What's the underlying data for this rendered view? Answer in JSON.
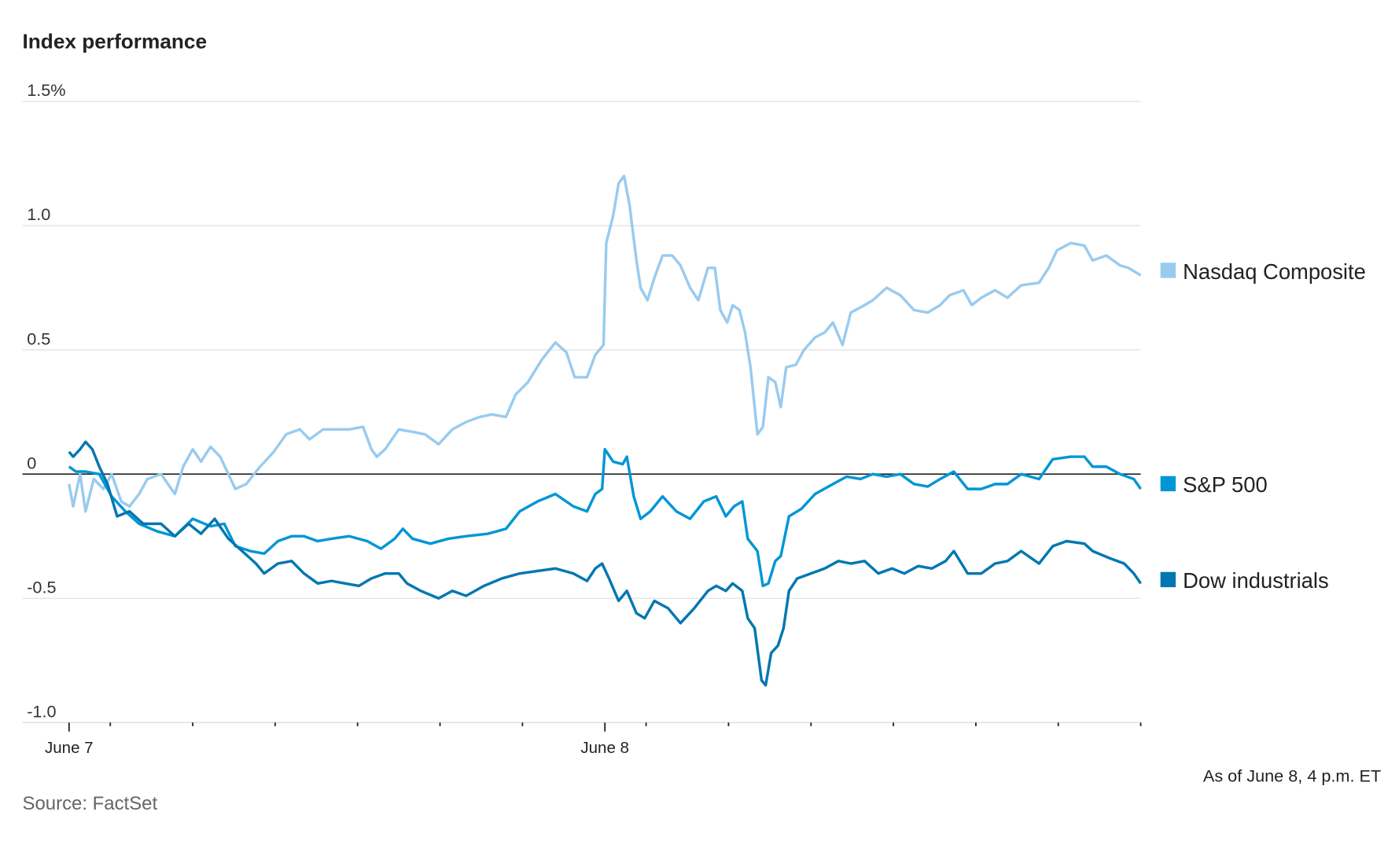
{
  "chart_data": {
    "type": "line",
    "title": "Index performance",
    "xlabel": "",
    "ylabel": "",
    "x_units": "trading minutes since June 7 open (390 per session)",
    "xlim": [
      0,
      780
    ],
    "ylim": [
      -1.0,
      1.5
    ],
    "y_ticks": [
      {
        "v": 1.5,
        "label": "1.5%"
      },
      {
        "v": 1.0,
        "label": "1.0"
      },
      {
        "v": 0.5,
        "label": "0.5"
      },
      {
        "v": 0,
        "label": "0"
      },
      {
        "v": -0.5,
        "label": "-0.5"
      },
      {
        "v": -1.0,
        "label": "-1.0"
      }
    ],
    "x_tick_labels": [
      {
        "t": 0,
        "label": "June 7"
      },
      {
        "t": 390,
        "label": "June 8"
      }
    ],
    "x_minor_ticks": [
      0,
      30,
      90,
      150,
      210,
      270,
      330,
      390,
      420,
      480,
      540,
      600,
      660,
      720,
      780
    ],
    "grid": true,
    "legend_placement": "right",
    "note": "As of June 8, 4 p.m. ET",
    "source": "Source: FactSet",
    "series": [
      {
        "name": "Nasdaq Composite",
        "color": "#99cbef",
        "points": [
          [
            0,
            -0.04
          ],
          [
            3,
            -0.13
          ],
          [
            8,
            0.0
          ],
          [
            12,
            -0.15
          ],
          [
            18,
            -0.02
          ],
          [
            25,
            -0.06
          ],
          [
            31,
            0.0
          ],
          [
            38,
            -0.11
          ],
          [
            44,
            -0.13
          ],
          [
            51,
            -0.08
          ],
          [
            57,
            -0.02
          ],
          [
            67,
            0.0
          ],
          [
            77,
            -0.08
          ],
          [
            83,
            0.03
          ],
          [
            90,
            0.1
          ],
          [
            96,
            0.05
          ],
          [
            103,
            0.11
          ],
          [
            110,
            0.07
          ],
          [
            116,
            0.0
          ],
          [
            121,
            -0.06
          ],
          [
            129,
            -0.04
          ],
          [
            139,
            0.03
          ],
          [
            149,
            0.09
          ],
          [
            158,
            0.16
          ],
          [
            168,
            0.18
          ],
          [
            175,
            0.14
          ],
          [
            185,
            0.18
          ],
          [
            194,
            0.18
          ],
          [
            204,
            0.18
          ],
          [
            214,
            0.19
          ],
          [
            220,
            0.1
          ],
          [
            224,
            0.07
          ],
          [
            230,
            0.1
          ],
          [
            240,
            0.18
          ],
          [
            250,
            0.17
          ],
          [
            259,
            0.16
          ],
          [
            269,
            0.12
          ],
          [
            279,
            0.18
          ],
          [
            289,
            0.21
          ],
          [
            299,
            0.23
          ],
          [
            308,
            0.24
          ],
          [
            318,
            0.23
          ],
          [
            325,
            0.32
          ],
          [
            334,
            0.37
          ],
          [
            344,
            0.46
          ],
          [
            354,
            0.53
          ],
          [
            362,
            0.49
          ],
          [
            368,
            0.39
          ],
          [
            377,
            0.39
          ],
          [
            383,
            0.48
          ],
          [
            389,
            0.52
          ],
          [
            391,
            0.93
          ],
          [
            396,
            1.04
          ],
          [
            400,
            1.17
          ],
          [
            404,
            1.2
          ],
          [
            408,
            1.08
          ],
          [
            413,
            0.86
          ],
          [
            416,
            0.75
          ],
          [
            421,
            0.7
          ],
          [
            426,
            0.79
          ],
          [
            432,
            0.88
          ],
          [
            439,
            0.88
          ],
          [
            445,
            0.84
          ],
          [
            452,
            0.75
          ],
          [
            458,
            0.7
          ],
          [
            465,
            0.83
          ],
          [
            470,
            0.83
          ],
          [
            474,
            0.66
          ],
          [
            479,
            0.61
          ],
          [
            483,
            0.68
          ],
          [
            488,
            0.66
          ],
          [
            492,
            0.57
          ],
          [
            496,
            0.43
          ],
          [
            501,
            0.16
          ],
          [
            505,
            0.19
          ],
          [
            509,
            0.39
          ],
          [
            514,
            0.37
          ],
          [
            518,
            0.27
          ],
          [
            522,
            0.43
          ],
          [
            529,
            0.44
          ],
          [
            535,
            0.5
          ],
          [
            543,
            0.55
          ],
          [
            550,
            0.57
          ],
          [
            556,
            0.61
          ],
          [
            563,
            0.52
          ],
          [
            569,
            0.65
          ],
          [
            579,
            0.68
          ],
          [
            585,
            0.7
          ],
          [
            595,
            0.75
          ],
          [
            605,
            0.72
          ],
          [
            615,
            0.66
          ],
          [
            625,
            0.65
          ],
          [
            634,
            0.68
          ],
          [
            641,
            0.72
          ],
          [
            651,
            0.74
          ],
          [
            657,
            0.68
          ],
          [
            664,
            0.71
          ],
          [
            674,
            0.74
          ],
          [
            683,
            0.71
          ],
          [
            693,
            0.76
          ],
          [
            706,
            0.77
          ],
          [
            713,
            0.83
          ],
          [
            719,
            0.9
          ],
          [
            729,
            0.93
          ],
          [
            739,
            0.92
          ],
          [
            745,
            0.86
          ],
          [
            755,
            0.88
          ],
          [
            765,
            0.84
          ],
          [
            771,
            0.83
          ],
          [
            780,
            0.8
          ]
        ]
      },
      {
        "name": "S&P 500",
        "color": "#0096d6",
        "points": [
          [
            0,
            0.03
          ],
          [
            5,
            0.01
          ],
          [
            12,
            0.01
          ],
          [
            22,
            0.0
          ],
          [
            31,
            -0.09
          ],
          [
            41,
            -0.15
          ],
          [
            51,
            -0.2
          ],
          [
            64,
            -0.23
          ],
          [
            77,
            -0.25
          ],
          [
            90,
            -0.18
          ],
          [
            103,
            -0.21
          ],
          [
            113,
            -0.2
          ],
          [
            121,
            -0.29
          ],
          [
            132,
            -0.31
          ],
          [
            142,
            -0.32
          ],
          [
            152,
            -0.27
          ],
          [
            162,
            -0.25
          ],
          [
            171,
            -0.25
          ],
          [
            181,
            -0.27
          ],
          [
            191,
            -0.26
          ],
          [
            204,
            -0.25
          ],
          [
            217,
            -0.27
          ],
          [
            227,
            -0.3
          ],
          [
            237,
            -0.26
          ],
          [
            243,
            -0.22
          ],
          [
            250,
            -0.26
          ],
          [
            263,
            -0.28
          ],
          [
            276,
            -0.26
          ],
          [
            289,
            -0.25
          ],
          [
            305,
            -0.24
          ],
          [
            318,
            -0.22
          ],
          [
            328,
            -0.15
          ],
          [
            341,
            -0.11
          ],
          [
            354,
            -0.08
          ],
          [
            367,
            -0.13
          ],
          [
            377,
            -0.15
          ],
          [
            383,
            -0.08
          ],
          [
            388,
            -0.06
          ],
          [
            390,
            0.1
          ],
          [
            396,
            0.05
          ],
          [
            403,
            0.04
          ],
          [
            406,
            0.07
          ],
          [
            411,
            -0.09
          ],
          [
            416,
            -0.18
          ],
          [
            423,
            -0.15
          ],
          [
            432,
            -0.09
          ],
          [
            442,
            -0.15
          ],
          [
            452,
            -0.18
          ],
          [
            462,
            -0.11
          ],
          [
            471,
            -0.09
          ],
          [
            478,
            -0.17
          ],
          [
            484,
            -0.13
          ],
          [
            490,
            -0.11
          ],
          [
            494,
            -0.26
          ],
          [
            501,
            -0.31
          ],
          [
            505,
            -0.45
          ],
          [
            509,
            -0.44
          ],
          [
            514,
            -0.35
          ],
          [
            518,
            -0.33
          ],
          [
            524,
            -0.17
          ],
          [
            533,
            -0.14
          ],
          [
            543,
            -0.08
          ],
          [
            556,
            -0.04
          ],
          [
            566,
            -0.01
          ],
          [
            576,
            -0.02
          ],
          [
            585,
            0.0
          ],
          [
            595,
            -0.01
          ],
          [
            605,
            0.0
          ],
          [
            615,
            -0.04
          ],
          [
            625,
            -0.05
          ],
          [
            634,
            -0.02
          ],
          [
            644,
            0.01
          ],
          [
            654,
            -0.06
          ],
          [
            664,
            -0.06
          ],
          [
            674,
            -0.04
          ],
          [
            683,
            -0.04
          ],
          [
            693,
            0.0
          ],
          [
            706,
            -0.02
          ],
          [
            716,
            0.06
          ],
          [
            729,
            0.07
          ],
          [
            739,
            0.07
          ],
          [
            745,
            0.03
          ],
          [
            755,
            0.03
          ],
          [
            765,
            0.0
          ],
          [
            775,
            -0.02
          ],
          [
            780,
            -0.06
          ]
        ]
      },
      {
        "name": "Dow industrials",
        "color": "#0077b0",
        "points": [
          [
            0,
            0.09
          ],
          [
            3,
            0.07
          ],
          [
            8,
            0.1
          ],
          [
            12,
            0.13
          ],
          [
            17,
            0.1
          ],
          [
            22,
            0.03
          ],
          [
            28,
            -0.04
          ],
          [
            35,
            -0.17
          ],
          [
            44,
            -0.15
          ],
          [
            54,
            -0.2
          ],
          [
            67,
            -0.2
          ],
          [
            77,
            -0.25
          ],
          [
            87,
            -0.2
          ],
          [
            96,
            -0.24
          ],
          [
            106,
            -0.18
          ],
          [
            116,
            -0.26
          ],
          [
            126,
            -0.31
          ],
          [
            136,
            -0.36
          ],
          [
            142,
            -0.4
          ],
          [
            152,
            -0.36
          ],
          [
            162,
            -0.35
          ],
          [
            171,
            -0.4
          ],
          [
            181,
            -0.44
          ],
          [
            191,
            -0.43
          ],
          [
            201,
            -0.44
          ],
          [
            211,
            -0.45
          ],
          [
            220,
            -0.42
          ],
          [
            230,
            -0.4
          ],
          [
            240,
            -0.4
          ],
          [
            246,
            -0.44
          ],
          [
            256,
            -0.47
          ],
          [
            269,
            -0.5
          ],
          [
            279,
            -0.47
          ],
          [
            289,
            -0.49
          ],
          [
            302,
            -0.45
          ],
          [
            315,
            -0.42
          ],
          [
            328,
            -0.4
          ],
          [
            341,
            -0.39
          ],
          [
            354,
            -0.38
          ],
          [
            367,
            -0.4
          ],
          [
            377,
            -0.43
          ],
          [
            383,
            -0.38
          ],
          [
            388,
            -0.36
          ],
          [
            393,
            -0.42
          ],
          [
            400,
            -0.51
          ],
          [
            406,
            -0.47
          ],
          [
            413,
            -0.56
          ],
          [
            419,
            -0.58
          ],
          [
            426,
            -0.51
          ],
          [
            436,
            -0.54
          ],
          [
            445,
            -0.6
          ],
          [
            455,
            -0.54
          ],
          [
            465,
            -0.47
          ],
          [
            471,
            -0.45
          ],
          [
            478,
            -0.47
          ],
          [
            483,
            -0.44
          ],
          [
            490,
            -0.47
          ],
          [
            494,
            -0.58
          ],
          [
            499,
            -0.62
          ],
          [
            504,
            -0.83
          ],
          [
            507,
            -0.85
          ],
          [
            511,
            -0.72
          ],
          [
            516,
            -0.69
          ],
          [
            520,
            -0.62
          ],
          [
            524,
            -0.47
          ],
          [
            530,
            -0.42
          ],
          [
            540,
            -0.4
          ],
          [
            550,
            -0.38
          ],
          [
            560,
            -0.35
          ],
          [
            569,
            -0.36
          ],
          [
            579,
            -0.35
          ],
          [
            589,
            -0.4
          ],
          [
            599,
            -0.38
          ],
          [
            608,
            -0.4
          ],
          [
            618,
            -0.37
          ],
          [
            628,
            -0.38
          ],
          [
            638,
            -0.35
          ],
          [
            644,
            -0.31
          ],
          [
            654,
            -0.4
          ],
          [
            664,
            -0.4
          ],
          [
            674,
            -0.36
          ],
          [
            683,
            -0.35
          ],
          [
            693,
            -0.31
          ],
          [
            706,
            -0.36
          ],
          [
            716,
            -0.29
          ],
          [
            726,
            -0.27
          ],
          [
            739,
            -0.28
          ],
          [
            745,
            -0.31
          ],
          [
            758,
            -0.34
          ],
          [
            768,
            -0.36
          ],
          [
            775,
            -0.4
          ],
          [
            780,
            -0.44
          ]
        ]
      }
    ]
  }
}
